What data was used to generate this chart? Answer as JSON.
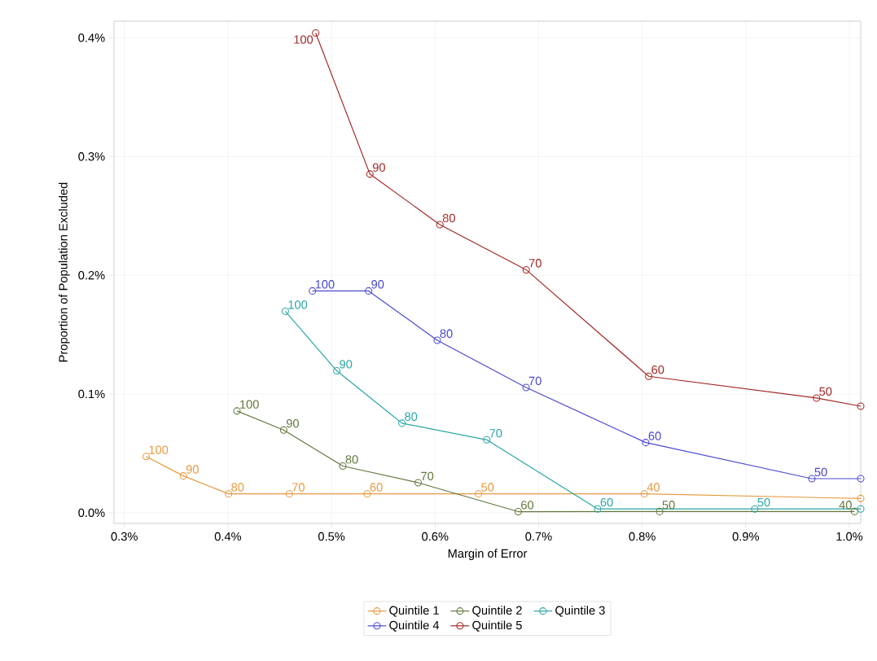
{
  "chart_data": {
    "type": "line",
    "xlabel": "Margin of Error",
    "ylabel": "Proportion of Population Excluded",
    "xlim": [
      0.29,
      1.011
    ],
    "ylim": [
      -0.009,
      0.414
    ],
    "xticks": [
      {
        "value": 0.3,
        "label": "0.3%"
      },
      {
        "value": 0.4,
        "label": "0.4%"
      },
      {
        "value": 0.5,
        "label": "0.5%"
      },
      {
        "value": 0.6,
        "label": "0.6%"
      },
      {
        "value": 0.7,
        "label": "0.7%"
      },
      {
        "value": 0.8,
        "label": "0.8%"
      },
      {
        "value": 0.9,
        "label": "0.9%"
      },
      {
        "value": 1.0,
        "label": "1.0%"
      }
    ],
    "yticks": [
      {
        "value": 0.0,
        "label": "0.0%"
      },
      {
        "value": 0.1,
        "label": "0.1%"
      },
      {
        "value": 0.2,
        "label": "0.2%"
      },
      {
        "value": 0.3,
        "label": "0.3%"
      },
      {
        "value": 0.4,
        "label": "0.4%"
      }
    ],
    "grid": true,
    "legend": "bottom",
    "marker": "circle",
    "line_style": "solid",
    "series": [
      {
        "name": "Quintile 1",
        "color": "#e69a3f",
        "x": [
          0.321,
          0.357,
          0.4006,
          0.4593,
          0.5345,
          0.6419,
          0.8021,
          1.011
        ],
        "values": [
          0.0474,
          0.031,
          0.0159,
          0.0159,
          0.0159,
          0.0159,
          0.0159,
          0.012
        ]
      },
      {
        "name": "Quintile 2",
        "color": "#62783c",
        "x": [
          0.4087,
          0.4538,
          0.5109,
          0.5837,
          0.6803,
          0.8168,
          1.005
        ],
        "values": [
          0.0857,
          0.0697,
          0.0393,
          0.0253,
          0.0009,
          0.001,
          0.001
        ]
      },
      {
        "name": "Quintile 3",
        "color": "#2aa6a6",
        "x": [
          0.4554,
          0.5051,
          0.568,
          0.6499,
          0.757,
          0.9087,
          1.011
        ],
        "values": [
          0.1696,
          0.1195,
          0.0754,
          0.0614,
          0.0032,
          0.0032,
          0.0032
        ]
      },
      {
        "name": "Quintile 4",
        "color": "#4a4ad2",
        "x": [
          0.4816,
          0.5358,
          0.6021,
          0.6879,
          0.8034,
          0.9638,
          1.011
        ],
        "values": [
          0.1868,
          0.1868,
          0.1453,
          0.1055,
          0.0591,
          0.0287,
          0.0287
        ]
      },
      {
        "name": "Quintile 5",
        "color": "#a32828",
        "x": [
          0.4847,
          0.5371,
          0.6047,
          0.688,
          0.8063,
          0.9683,
          1.011
        ],
        "values": [
          0.4041,
          0.2852,
          0.2426,
          0.2046,
          0.1149,
          0.0966,
          0.0897
        ]
      }
    ],
    "annotations": [
      {
        "text": "100",
        "x": 0.321,
        "y": 0.0474
      },
      {
        "text": "90",
        "x": 0.357,
        "y": 0.031
      },
      {
        "text": "80",
        "x": 0.4006,
        "y": 0.0159
      },
      {
        "text": "70",
        "x": 0.4593,
        "y": 0.0159
      },
      {
        "text": "60",
        "x": 0.5345,
        "y": 0.0159
      },
      {
        "text": "50",
        "x": 0.6419,
        "y": 0.0159
      },
      {
        "text": "40",
        "x": 0.8021,
        "y": 0.0159
      },
      {
        "text": "100",
        "x": 0.4087,
        "y": 0.0857
      },
      {
        "text": "90",
        "x": 0.4538,
        "y": 0.0697
      },
      {
        "text": "80",
        "x": 0.5109,
        "y": 0.0393
      },
      {
        "text": "70",
        "x": 0.5837,
        "y": 0.0253
      },
      {
        "text": "60",
        "x": 0.6803,
        "y": 0.0009
      },
      {
        "text": "50",
        "x": 0.8168,
        "y": 0.001
      },
      {
        "text": "40",
        "x": 1.005,
        "y": 0.001
      },
      {
        "text": "100",
        "x": 0.4554,
        "y": 0.1696
      },
      {
        "text": "90",
        "x": 0.5051,
        "y": 0.1195
      },
      {
        "text": "80",
        "x": 0.568,
        "y": 0.0754
      },
      {
        "text": "70",
        "x": 0.6499,
        "y": 0.0614
      },
      {
        "text": "60",
        "x": 0.757,
        "y": 0.0032
      },
      {
        "text": "50",
        "x": 0.9087,
        "y": 0.0032
      },
      {
        "text": "100",
        "x": 0.4816,
        "y": 0.1868
      },
      {
        "text": "90",
        "x": 0.5358,
        "y": 0.1868
      },
      {
        "text": "80",
        "x": 0.6021,
        "y": 0.1453
      },
      {
        "text": "70",
        "x": 0.6879,
        "y": 0.1055
      },
      {
        "text": "60",
        "x": 0.8034,
        "y": 0.0591
      },
      {
        "text": "50",
        "x": 0.9638,
        "y": 0.0287
      },
      {
        "text": "100",
        "x": 0.4847,
        "y": 0.4041
      },
      {
        "text": "90",
        "x": 0.5371,
        "y": 0.2852
      },
      {
        "text": "80",
        "x": 0.6047,
        "y": 0.2426
      },
      {
        "text": "70",
        "x": 0.688,
        "y": 0.2046
      },
      {
        "text": "60",
        "x": 0.8063,
        "y": 0.1149
      },
      {
        "text": "50",
        "x": 0.9683,
        "y": 0.0966
      }
    ]
  }
}
